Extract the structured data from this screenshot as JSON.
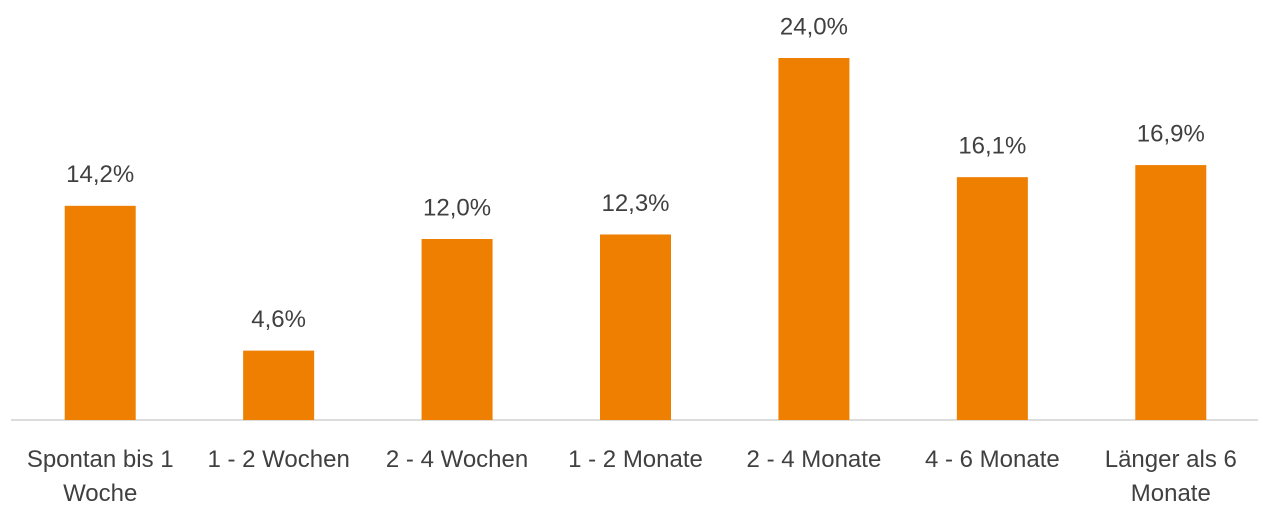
{
  "chart_data": {
    "type": "bar",
    "categories": [
      "Spontan bis 1 Woche",
      "1 - 2 Wochen",
      "2 - 4 Wochen",
      "1 - 2 Monate",
      "2 - 4 Monate",
      "4 - 6 Monate",
      "Länger als 6 Monate"
    ],
    "values": [
      14.2,
      4.6,
      12.0,
      12.3,
      24.0,
      16.1,
      16.9
    ],
    "value_labels": [
      "14,2%",
      "4,6%",
      "12,0%",
      "12,3%",
      "24,0%",
      "16,1%",
      "16,9%"
    ],
    "color": "#ee7f00"
  }
}
